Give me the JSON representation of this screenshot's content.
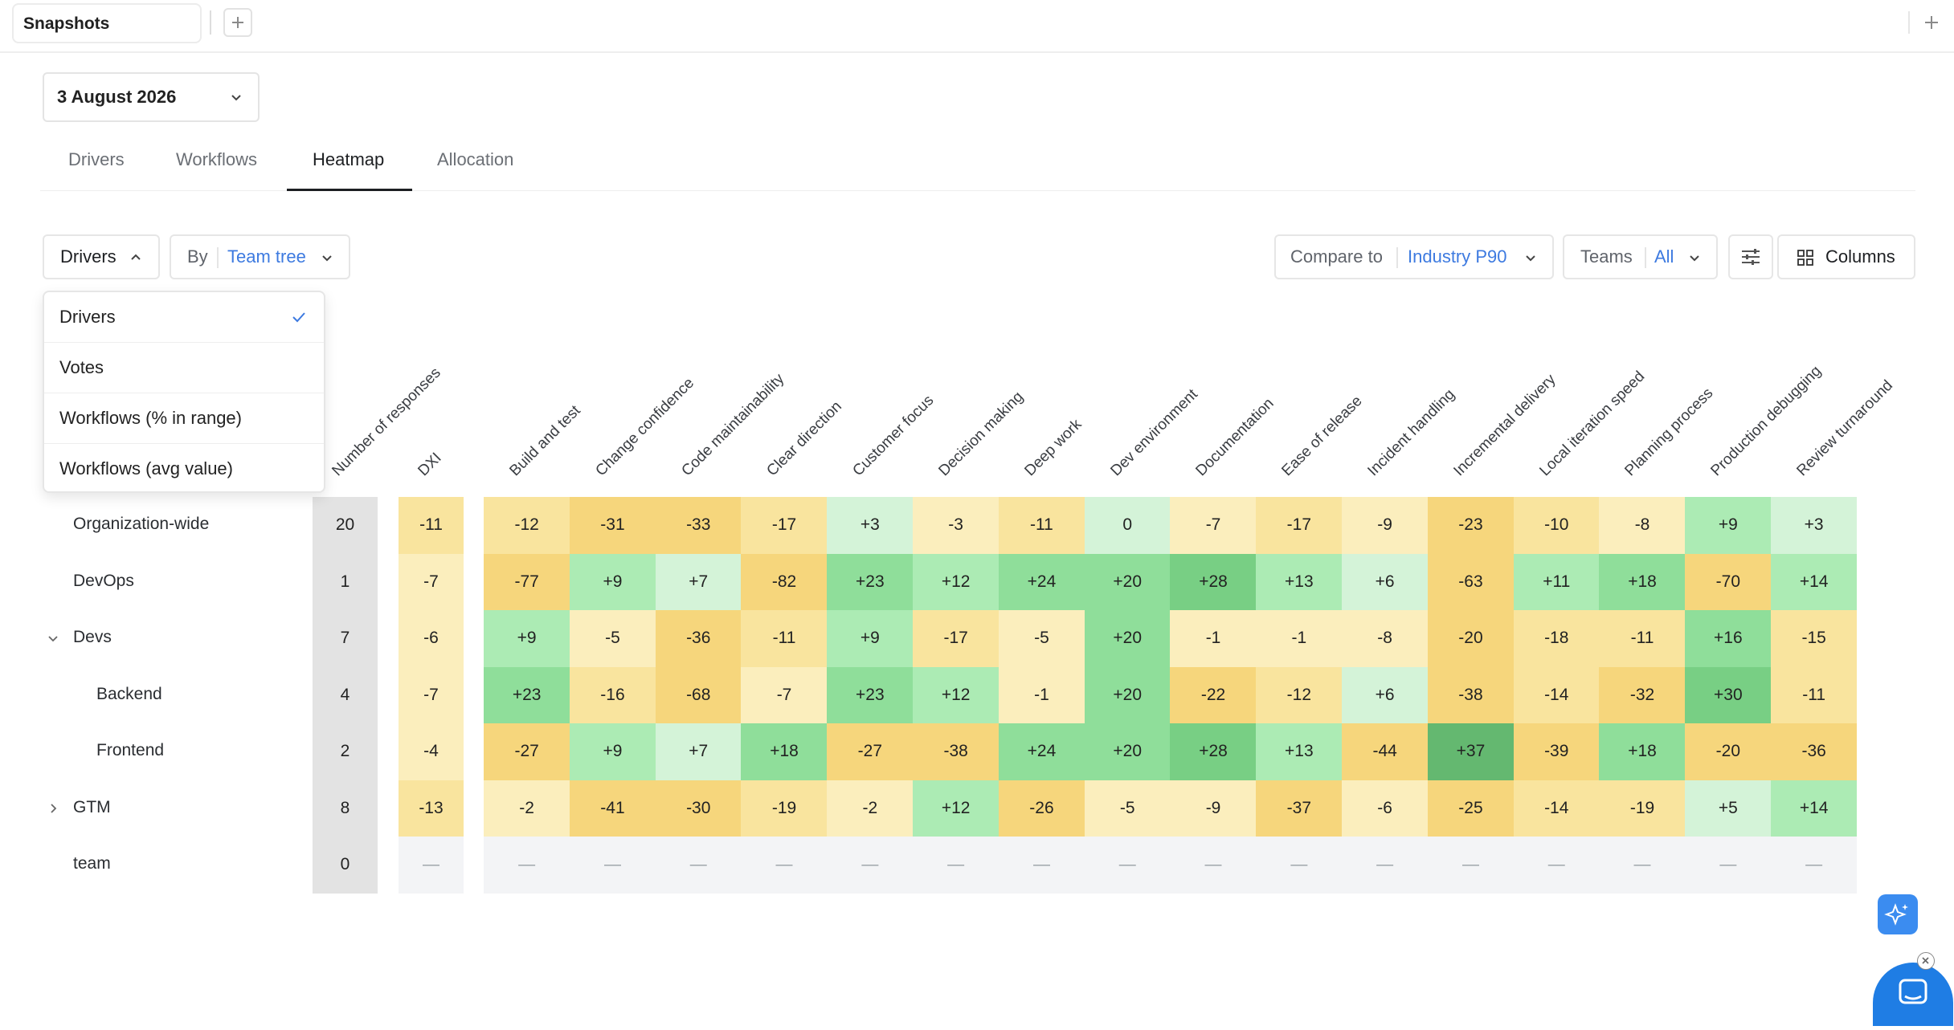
{
  "top_bar": {
    "tab_label": "Snapshots"
  },
  "date_select": {
    "value": "3 August 2026"
  },
  "tabs": [
    {
      "label": "Drivers",
      "active": false
    },
    {
      "label": "Workflows",
      "active": false
    },
    {
      "label": "Heatmap",
      "active": true
    },
    {
      "label": "Allocation",
      "active": false
    }
  ],
  "filters": {
    "metric_label": "Drivers",
    "by_label": "By",
    "by_value": "Team tree",
    "compare_label": "Compare to",
    "compare_value": "Industry P90",
    "teams_label": "Teams",
    "teams_value": "All",
    "columns_label": "Columns"
  },
  "dropdown": {
    "items": [
      {
        "label": "Drivers",
        "selected": true
      },
      {
        "label": "Votes",
        "selected": false
      },
      {
        "label": "Workflows (% in range)",
        "selected": false
      },
      {
        "label": "Workflows (avg value)",
        "selected": false
      }
    ]
  },
  "heatmap": {
    "responses_header": "Number of responses",
    "dxi_header": "DXI",
    "driver_headers": [
      "Build and test",
      "Change confidence",
      "Code maintainability",
      "Clear direction",
      "Customer focus",
      "Decision making",
      "Deep work",
      "Dev environment",
      "Documentation",
      "Ease of release",
      "Incident handling",
      "Incremental delivery",
      "Local iteration speed",
      "Planning process",
      "Production debugging",
      "Review turnaround"
    ],
    "rows": [
      {
        "label": "Organization-wide",
        "level": 0,
        "toggle": "",
        "responses": "20",
        "dxi": "-11",
        "values": [
          "-12",
          "-31",
          "-33",
          "-17",
          "+3",
          "-3",
          "-11",
          "0",
          "-7",
          "-17",
          "-9",
          "-23",
          "-10",
          "-8",
          "+9",
          "+3"
        ]
      },
      {
        "label": "DevOps",
        "level": 0,
        "toggle": "",
        "responses": "1",
        "dxi": "-7",
        "values": [
          "-77",
          "+9",
          "+7",
          "-82",
          "+23",
          "+12",
          "+24",
          "+20",
          "+28",
          "+13",
          "+6",
          "-63",
          "+11",
          "+18",
          "-70",
          "+14"
        ]
      },
      {
        "label": "Devs",
        "level": 0,
        "toggle": "expanded",
        "responses": "7",
        "dxi": "-6",
        "values": [
          "+9",
          "-5",
          "-36",
          "-11",
          "+9",
          "-17",
          "-5",
          "+20",
          "-1",
          "-1",
          "-8",
          "-20",
          "-18",
          "-11",
          "+16",
          "-15"
        ]
      },
      {
        "label": "Backend",
        "level": 1,
        "toggle": "",
        "responses": "4",
        "dxi": "-7",
        "values": [
          "+23",
          "-16",
          "-68",
          "-7",
          "+23",
          "+12",
          "-1",
          "+20",
          "-22",
          "-12",
          "+6",
          "-38",
          "-14",
          "-32",
          "+30",
          "-11"
        ]
      },
      {
        "label": "Frontend",
        "level": 1,
        "toggle": "",
        "responses": "2",
        "dxi": "-4",
        "values": [
          "-27",
          "+9",
          "+7",
          "+18",
          "-27",
          "-38",
          "+24",
          "+20",
          "+28",
          "+13",
          "-44",
          "+37",
          "-39",
          "+18",
          "-20",
          "-36"
        ]
      },
      {
        "label": "GTM",
        "level": 0,
        "toggle": "collapsed",
        "responses": "8",
        "dxi": "-13",
        "values": [
          "-2",
          "-41",
          "-30",
          "-19",
          "-2",
          "+12",
          "-26",
          "-5",
          "-9",
          "-37",
          "-6",
          "-25",
          "-14",
          "-19",
          "+5",
          "+14"
        ]
      },
      {
        "label": "team",
        "level": 0,
        "toggle": "",
        "responses": "0",
        "dxi": "—",
        "values": [
          "—",
          "—",
          "—",
          "—",
          "—",
          "—",
          "—",
          "—",
          "—",
          "—",
          "—",
          "—",
          "—",
          "—",
          "—",
          "—"
        ]
      }
    ]
  },
  "colors": {
    "accent": "#3d7ae0",
    "responses_bg": "#e3e3e3",
    "empty_bg": "#f3f4f6",
    "scale_pos": [
      "#d4f3d8",
      "#acebb4",
      "#8fde9a",
      "#78cf84",
      "#64b870"
    ],
    "scale_neg": [
      "#fbeebd",
      "#f9e49e",
      "#f6d67c"
    ]
  }
}
